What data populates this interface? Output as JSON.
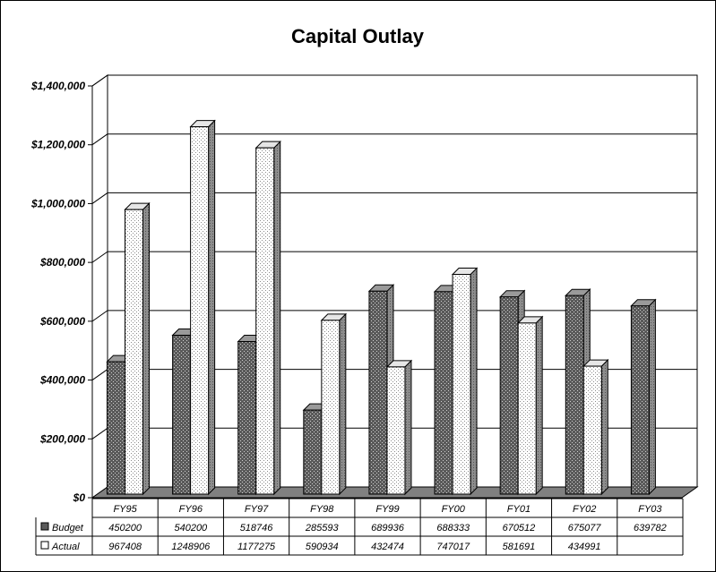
{
  "chart_data": {
    "type": "bar",
    "title": "Capital Outlay",
    "categories": [
      "FY95",
      "FY96",
      "FY97",
      "FY98",
      "FY99",
      "FY00",
      "FY01",
      "FY02",
      "FY03"
    ],
    "series": [
      {
        "name": "Budget",
        "values": [
          450200,
          540200,
          518746,
          285593,
          689936,
          688333,
          670512,
          675077,
          639782
        ],
        "display": [
          "450200",
          "540200",
          "518746",
          "285593",
          "689936",
          "688333",
          "670512",
          "675077",
          "639782"
        ]
      },
      {
        "name": "Actual",
        "values": [
          967408,
          1248906,
          1177275,
          590934,
          432474,
          747017,
          581691,
          434991,
          null
        ],
        "display": [
          "967408",
          "1248906",
          "1177275",
          "590934",
          "432474",
          "747017",
          "581691",
          "434991",
          ""
        ]
      }
    ],
    "yticks": [
      "$0",
      "$200,000",
      "$400,000",
      "$600,000",
      "$800,000",
      "$1,000,000",
      "$1,200,000",
      "$1,400,000"
    ],
    "ylim": [
      0,
      1400000
    ],
    "grid": true,
    "legend": "data-table",
    "colors": {
      "Budget": "#4a4a4a",
      "Actual": "#ffffff",
      "floor": "#808080"
    }
  }
}
